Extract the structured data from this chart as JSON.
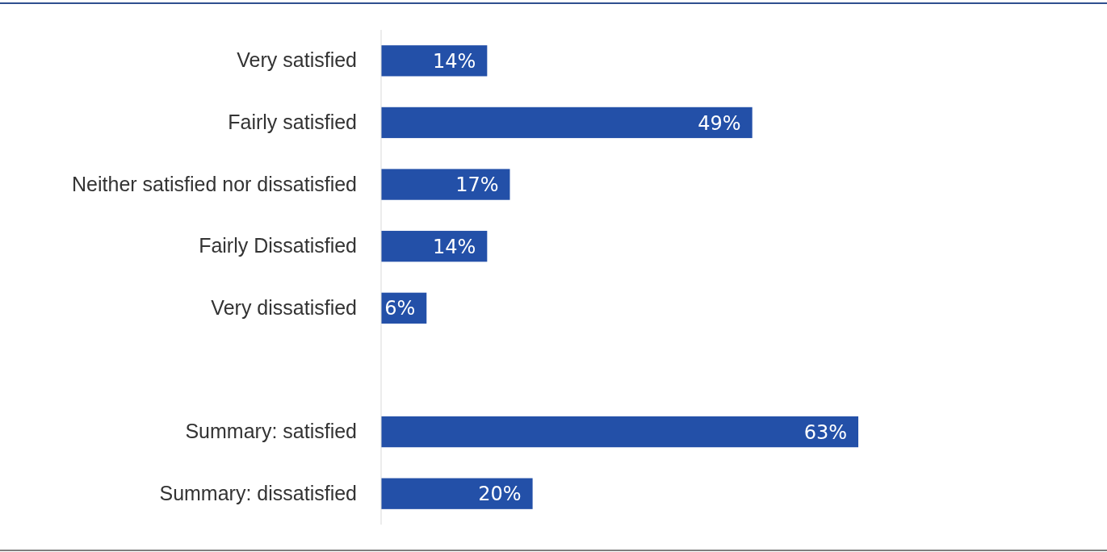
{
  "chart_data": {
    "type": "bar",
    "orientation": "horizontal",
    "categories": [
      "Very satisfied",
      "Fairly satisfied",
      "Neither satisfied nor dissatisfied",
      "Fairly Dissatisfied",
      "Very dissatisfied",
      null,
      "Summary: satisfied",
      "Summary: dissatisfied"
    ],
    "values": [
      14,
      49,
      17,
      14,
      6,
      null,
      63,
      20
    ],
    "value_labels": [
      "14%",
      "49%",
      "17%",
      "14%",
      "6%",
      null,
      "63%",
      "20%"
    ],
    "color": "#2350a8",
    "tick_labels": "y"
  }
}
